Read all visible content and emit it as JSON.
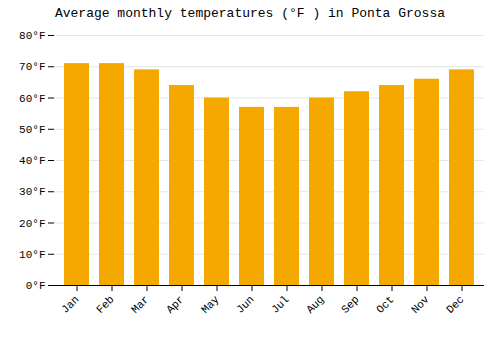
{
  "chart_data": {
    "type": "bar",
    "title": "Average monthly temperatures (°F ) in Ponta Grossa",
    "categories": [
      "Jan",
      "Feb",
      "Mar",
      "Apr",
      "May",
      "Jun",
      "Jul",
      "Aug",
      "Sep",
      "Oct",
      "Nov",
      "Dec"
    ],
    "values": [
      71,
      71,
      69,
      64,
      60,
      57,
      57,
      60,
      62,
      64,
      66,
      69
    ],
    "color": "#F5A800",
    "ylim": [
      0,
      80
    ],
    "yticks": [
      {
        "value": 0,
        "label": "0°F"
      },
      {
        "value": 10,
        "label": "10°F"
      },
      {
        "value": 20,
        "label": "20°F"
      },
      {
        "value": 30,
        "label": "30°F"
      },
      {
        "value": 40,
        "label": "40°F"
      },
      {
        "value": 50,
        "label": "50°F"
      },
      {
        "value": 60,
        "label": "60°F"
      },
      {
        "value": 70,
        "label": "70°F"
      },
      {
        "value": 80,
        "label": "80°F"
      }
    ],
    "grid": true
  }
}
